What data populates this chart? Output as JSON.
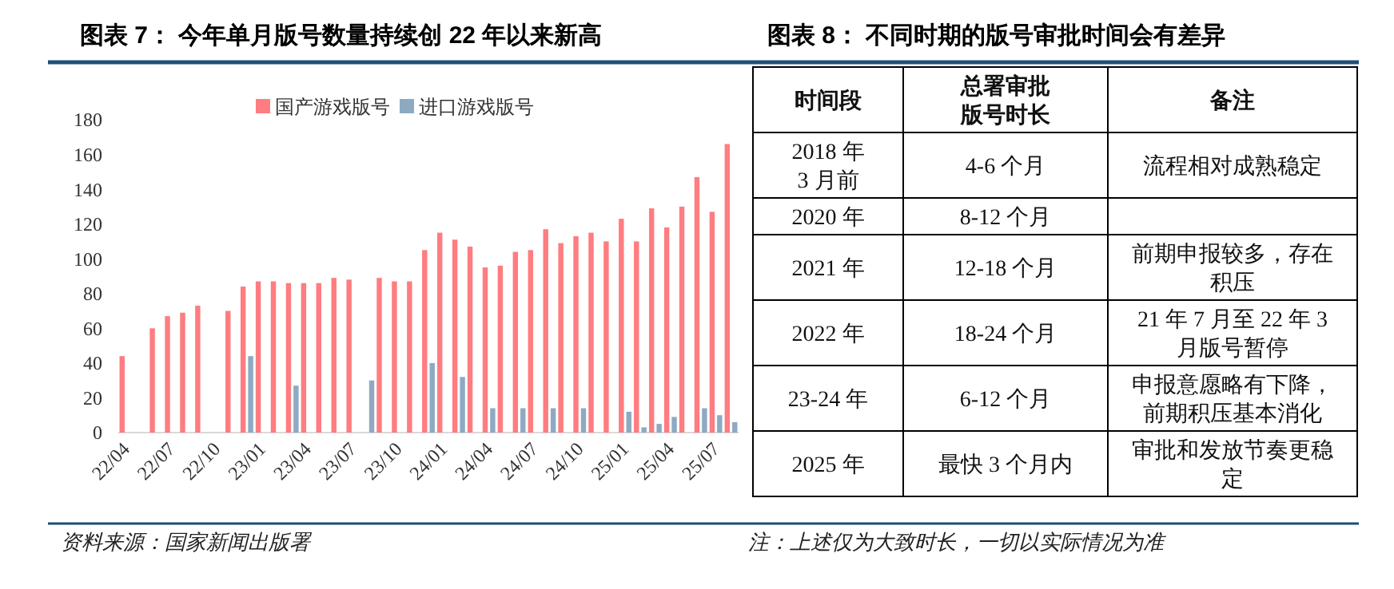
{
  "chart_data": [
    {
      "type": "bar",
      "title": "图表 7：  今年单月版号数量持续创 22 年以来新高",
      "categories": [
        "22/04",
        null,
        null,
        "22/07",
        null,
        null,
        "22/10",
        null,
        null,
        "23/01",
        null,
        null,
        "23/04",
        null,
        null,
        "23/07",
        null,
        null,
        "23/10",
        null,
        null,
        "24/01",
        null,
        null,
        "24/04",
        null,
        null,
        "24/07",
        null,
        null,
        "24/10",
        null,
        null,
        "25/01",
        null,
        null,
        "25/04",
        null,
        null,
        "25/07",
        null
      ],
      "series": [
        {
          "name": "国产游戏版号",
          "color": "#ff7c80",
          "values": [
            44,
            null,
            60,
            67,
            69,
            73,
            null,
            70,
            84,
            87,
            87,
            86,
            86,
            86,
            89,
            88,
            null,
            89,
            87,
            87,
            105,
            115,
            111,
            107,
            95,
            96,
            104,
            105,
            117,
            109,
            113,
            115,
            110,
            123,
            110,
            129,
            118,
            130,
            147,
            127,
            166
          ]
        },
        {
          "name": "进口游戏版号",
          "color": "#8eaac2",
          "values": [
            null,
            null,
            null,
            null,
            null,
            null,
            null,
            null,
            44,
            null,
            null,
            27,
            null,
            null,
            null,
            null,
            30,
            null,
            null,
            null,
            40,
            null,
            32,
            null,
            14,
            null,
            14,
            null,
            14,
            null,
            14,
            null,
            null,
            12,
            3,
            5,
            9,
            null,
            14,
            10,
            6
          ]
        }
      ],
      "ylim": [
        0,
        180
      ],
      "yticks": [
        0,
        20,
        40,
        60,
        80,
        100,
        120,
        140,
        160,
        180
      ],
      "legend": "top",
      "annotations": [
        "资料来源：国家新闻出版署"
      ]
    },
    {
      "type": "other",
      "title": "图表 8：  不同时期的版号审批时间会有差异",
      "cell_labels": [
        [
          "时间段",
          "总署审批版号时长",
          "备注"
        ],
        [
          "2018 年 3 月前",
          "4-6 个月",
          "流程相对成熟稳定"
        ],
        [
          "2020 年",
          "8-12 个月",
          null
        ],
        [
          "2021 年",
          "12-18 个月",
          "前期申报较多，存在积压"
        ],
        [
          "2022 年",
          "18-24 个月",
          "21 年 7 月至 22 年 3 月版号暂停"
        ],
        [
          "23-24 年",
          "6-12 个月",
          "申报意愿略有下降，前期积压基本消化"
        ],
        [
          "2025 年",
          "最快 3 个月内",
          "审批和发放节奏更稳定"
        ]
      ],
      "annotations": [
        "注：上述仅为大致时长，一切以实际情况为准"
      ]
    }
  ]
}
